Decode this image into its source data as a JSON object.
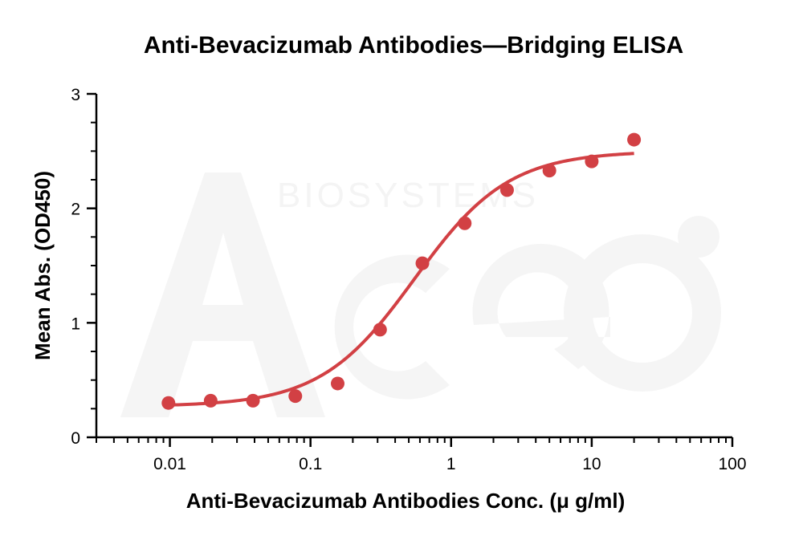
{
  "chart_data": {
    "type": "scatter",
    "title": "Anti-Bevacizumab Antibodies—Bridging ELISA",
    "xlabel": "Anti-Bevacizumab Antibodies Conc. (μ g/ml)",
    "ylabel": "Mean Abs. (OD450)",
    "x_scale": "log",
    "xlim": [
      0.003,
      100
    ],
    "ylim": [
      0,
      3
    ],
    "x_ticks": [
      0.01,
      0.1,
      1,
      10,
      100
    ],
    "x_tick_labels": [
      "0.01",
      "0.1",
      "1",
      "10",
      "100"
    ],
    "y_ticks": [
      0,
      1,
      2,
      3
    ],
    "y_tick_labels": [
      "0",
      "1",
      "2",
      "3"
    ],
    "grid": false,
    "colors": {
      "series": "#d24044",
      "axis": "#000000",
      "watermark": "#f2f2f2"
    },
    "series": [
      {
        "x": [
          0.00977,
          0.0195,
          0.039,
          0.078,
          0.156,
          0.3125,
          0.625,
          1.25,
          2.5,
          5,
          10,
          20
        ],
        "values": [
          0.3,
          0.32,
          0.32,
          0.36,
          0.47,
          0.94,
          1.52,
          1.87,
          2.16,
          2.33,
          2.41,
          2.6
        ]
      }
    ],
    "fit_curve": {
      "model": "4PL",
      "bottom": 0.27,
      "top": 2.5,
      "ec50": 0.55,
      "hill": 1.3,
      "x_range": [
        0.00977,
        20
      ]
    }
  },
  "watermark": {
    "text": "BIOSYSTEMS"
  }
}
